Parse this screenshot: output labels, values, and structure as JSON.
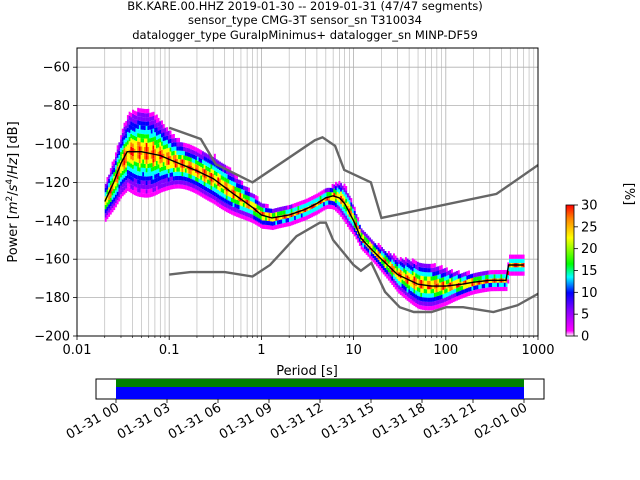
{
  "chart_data": {
    "type": "heatmap",
    "title_lines": [
      "BK.KARE.00.HHZ   2019-01-30 -- 2019-01-31  (47/47 segments)",
      "sensor_type CMG-3T sensor_sn T310034",
      "datalogger_type GuralpMinimus+ datalogger_sn MINP-DF59"
    ],
    "xlabel": "Period [s]",
    "ylabel_prefix": "Power [",
    "ylabel_suffix": "] [dB]",
    "xscale": "log",
    "xlim": [
      0.01,
      1000
    ],
    "ylim": [
      -200,
      -50
    ],
    "grid": true,
    "x_ticks": [
      {
        "value": 0.01,
        "label": "0.01"
      },
      {
        "value": 0.1,
        "label": "0.1"
      },
      {
        "value": 1,
        "label": "1"
      },
      {
        "value": 10,
        "label": "10"
      },
      {
        "value": 100,
        "label": "100"
      },
      {
        "value": 1000,
        "label": "1000"
      }
    ],
    "y_ticks": [
      {
        "value": -60,
        "label": "−60"
      },
      {
        "value": -80,
        "label": "−80"
      },
      {
        "value": -100,
        "label": "−100"
      },
      {
        "value": -120,
        "label": "−120"
      },
      {
        "value": -140,
        "label": "−140"
      },
      {
        "value": -160,
        "label": "−160"
      },
      {
        "value": -180,
        "label": "−180"
      },
      {
        "value": -200,
        "label": "−200"
      }
    ],
    "colorbar": {
      "label": "[%]",
      "range": [
        0,
        30
      ],
      "ticks": [
        {
          "value": 0,
          "label": "0"
        },
        {
          "value": 5,
          "label": "5"
        },
        {
          "value": 10,
          "label": "10"
        },
        {
          "value": 15,
          "label": "15"
        },
        {
          "value": 20,
          "label": "20"
        },
        {
          "value": 25,
          "label": "25"
        },
        {
          "value": 30,
          "label": "30"
        }
      ],
      "colors": [
        "#ffffff",
        "#ff00ff",
        "#0000ff",
        "#00ffff",
        "#00ff00",
        "#ffff00",
        "#ff0000"
      ]
    },
    "nhnm": [
      [
        0.1,
        -168
      ],
      [
        0.17,
        -166.7
      ],
      [
        0.4,
        -166.7
      ],
      [
        0.8,
        -169
      ],
      [
        1.24,
        -163
      ],
      [
        2.4,
        -148
      ],
      [
        4.3,
        -141
      ],
      [
        5.0,
        -141
      ],
      [
        6.0,
        -150
      ],
      [
        10.0,
        -163
      ],
      [
        12.0,
        -166
      ],
      [
        15.6,
        -162
      ],
      [
        21.9,
        -177
      ],
      [
        31.6,
        -185
      ],
      [
        45.0,
        -187.5
      ],
      [
        70.0,
        -187.5
      ],
      [
        101.0,
        -185
      ],
      [
        154.0,
        -185
      ],
      [
        328.0,
        -187.5
      ],
      [
        600.0,
        -184
      ],
      [
        1000.0,
        -178
      ]
    ],
    "nlnm": [
      [
        0.1,
        -91.5
      ],
      [
        0.22,
        -97.4
      ],
      [
        0.32,
        -110.5
      ],
      [
        0.8,
        -120
      ],
      [
        3.8,
        -98
      ],
      [
        4.6,
        -96.5
      ],
      [
        6.3,
        -101
      ],
      [
        7.9,
        -113.5
      ],
      [
        15.4,
        -120
      ],
      [
        20.0,
        -138.5
      ],
      [
        354.8,
        -126
      ],
      [
        1000.0,
        -111
      ]
    ],
    "mode": [
      [
        0.02,
        -130
      ],
      [
        0.025,
        -120
      ],
      [
        0.03,
        -110
      ],
      [
        0.035,
        -104
      ],
      [
        0.05,
        -104
      ],
      [
        0.08,
        -106
      ],
      [
        0.1,
        -108
      ],
      [
        0.2,
        -114
      ],
      [
        0.3,
        -118
      ],
      [
        0.5,
        -126
      ],
      [
        0.8,
        -133
      ],
      [
        1.0,
        -137
      ],
      [
        1.3,
        -138.5
      ],
      [
        2.0,
        -137
      ],
      [
        3.0,
        -134
      ],
      [
        4.0,
        -131
      ],
      [
        5.0,
        -128
      ],
      [
        6.0,
        -127
      ],
      [
        7.0,
        -128
      ],
      [
        8.0,
        -131
      ],
      [
        10.0,
        -140
      ],
      [
        12.0,
        -149
      ],
      [
        15.0,
        -154
      ],
      [
        20.0,
        -160
      ],
      [
        30.0,
        -168
      ],
      [
        50.0,
        -173
      ],
      [
        70.0,
        -174
      ],
      [
        100.0,
        -174
      ],
      [
        150.0,
        -173
      ],
      [
        200.0,
        -172
      ],
      [
        300.0,
        -171
      ],
      [
        450.0,
        -171
      ],
      [
        480.0,
        -163
      ],
      [
        700.0,
        -163
      ]
    ],
    "time_axis": {
      "ticks": [
        "01-31 00",
        "01-31 03",
        "01-31 06",
        "01-31 09",
        "01-31 12",
        "01-31 15",
        "01-31 18",
        "01-31 21",
        "02-01 00"
      ],
      "coverage_colors": [
        "#008000",
        "#0000ff"
      ]
    }
  }
}
